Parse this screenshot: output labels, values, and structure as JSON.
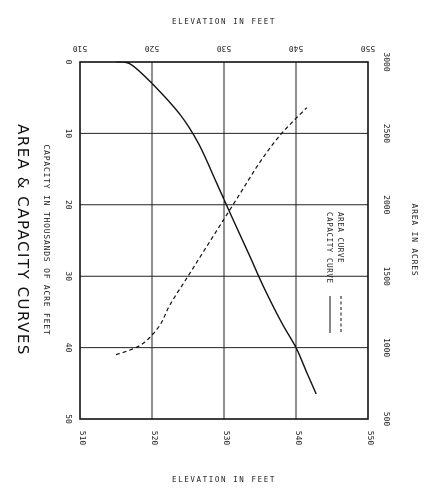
{
  "chart_data": {
    "type": "line",
    "title": "AREA & CAPACITY CURVES",
    "elevation_axis_label_top": "ELEVATION IN FEET",
    "elevation_axis_label_bottom": "ELEVATION IN FEET",
    "capacity_axis_label": "CAPACITY IN THOUSANDS OF ACRE FEET",
    "area_axis_label": "AREA IN ACRES",
    "elevation_ticks": [
      "510",
      "520",
      "530",
      "540",
      "550"
    ],
    "capacity_ticks": [
      "0",
      "10",
      "20",
      "30",
      "40",
      "50"
    ],
    "area_ticks": [
      "3000",
      "2500",
      "2000",
      "1500",
      "1000",
      "500"
    ],
    "elevation_range": [
      510,
      550
    ],
    "capacity_range": [
      0,
      50
    ],
    "area_range": [
      3000,
      500
    ],
    "legend": [
      {
        "label": "AREA CURVE",
        "style": "dashed"
      },
      {
        "label": "CAPACITY CURVE",
        "style": "solid"
      }
    ],
    "series": [
      {
        "name": "CAPACITY CURVE",
        "measure": "capacity (thousands of acre feet)",
        "style": "solid",
        "points": [
          {
            "elevation": 515.0,
            "capacity": 0
          },
          {
            "elevation": 517.0,
            "capacity": 0.3
          },
          {
            "elevation": 520.0,
            "capacity": 3.0
          },
          {
            "elevation": 524.0,
            "capacity": 7.5
          },
          {
            "elevation": 526.5,
            "capacity": 11.5
          },
          {
            "elevation": 529.0,
            "capacity": 17.0
          },
          {
            "elevation": 531.0,
            "capacity": 21.5
          },
          {
            "elevation": 533.5,
            "capacity": 27.0
          },
          {
            "elevation": 535.5,
            "capacity": 31.5
          },
          {
            "elevation": 538.0,
            "capacity": 36.5
          },
          {
            "elevation": 540.0,
            "capacity": 40.0
          },
          {
            "elevation": 541.5,
            "capacity": 43.5
          },
          {
            "elevation": 542.8,
            "capacity": 46.5
          }
        ]
      },
      {
        "name": "AREA CURVE",
        "measure": "area (acres)",
        "style": "dashed",
        "points": [
          {
            "elevation": 515.0,
            "area": 950
          },
          {
            "elevation": 518.5,
            "area": 1020
          },
          {
            "elevation": 521.0,
            "area": 1150
          },
          {
            "elevation": 522.5,
            "area": 1300
          },
          {
            "elevation": 525.0,
            "area": 1500
          },
          {
            "elevation": 527.5,
            "area": 1700
          },
          {
            "elevation": 530.0,
            "area": 1900
          },
          {
            "elevation": 532.5,
            "area": 2100
          },
          {
            "elevation": 535.0,
            "area": 2300
          },
          {
            "elevation": 537.5,
            "area": 2470
          },
          {
            "elevation": 539.5,
            "area": 2580
          },
          {
            "elevation": 541.5,
            "area": 2680
          }
        ]
      }
    ]
  }
}
